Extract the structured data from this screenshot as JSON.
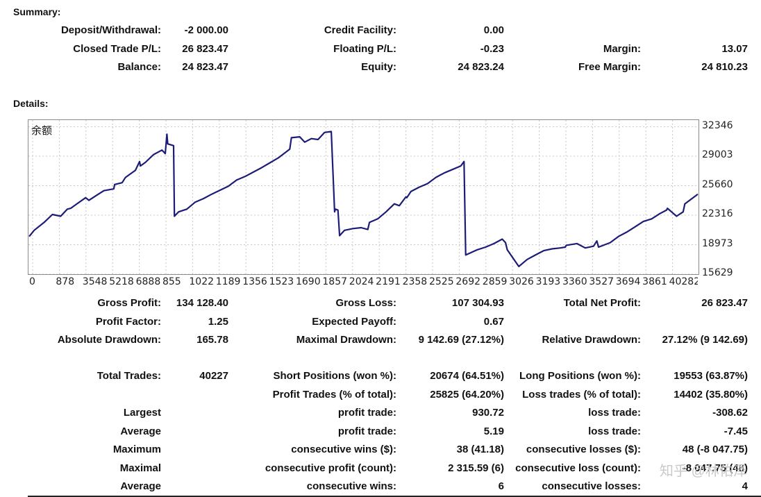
{
  "summary": {
    "heading": "Summary:",
    "deposit_label": "Deposit/Withdrawal:",
    "deposit_value": "-2 000.00",
    "credit_label": "Credit Facility:",
    "credit_value": "0.00",
    "closed_pl_label": "Closed Trade P/L:",
    "closed_pl_value": "26 823.47",
    "floating_label": "Floating P/L:",
    "floating_value": "-0.23",
    "margin_label": "Margin:",
    "margin_value": "13.07",
    "balance_label": "Balance:",
    "balance_value": "24 823.47",
    "equity_label": "Equity:",
    "equity_value": "24 823.24",
    "free_margin_label": "Free Margin:",
    "free_margin_value": "24 810.23"
  },
  "details": {
    "heading": "Details:"
  },
  "chart_data": {
    "type": "line",
    "title": "余额",
    "grid": true,
    "ylim": [
      15629,
      33100
    ],
    "y_ticks": [
      "32346",
      "29003",
      "25660",
      "22316",
      "18973",
      "15629"
    ],
    "x_ticks": [
      "0",
      "878",
      "3548",
      "5218",
      "6888",
      "855",
      "1022",
      "1189",
      "1356",
      "1523",
      "1690",
      "1857",
      "2024",
      "2191",
      "2358",
      "2525",
      "2692",
      "2859",
      "3026",
      "3193",
      "3360",
      "3527",
      "3694",
      "3861",
      "40282"
    ],
    "color": "#1c1c78",
    "x": [
      0,
      300,
      900,
      1400,
      1900,
      2300,
      2500,
      2800,
      3400,
      3600,
      4000,
      4500,
      5100,
      5150,
      5600,
      5800,
      6100,
      6400,
      6650,
      6700,
      6850,
      7000,
      7500,
      8000,
      8200,
      8300,
      8350,
      8700,
      8750,
      9000,
      9500,
      10000,
      10500,
      11000,
      12000,
      12500,
      13000,
      14000,
      15000,
      15700,
      15800,
      16300,
      16600,
      17000,
      17400,
      17800,
      18200,
      18400,
      18450,
      18600,
      18700,
      19000,
      19500,
      20000,
      20400,
      20500,
      21000,
      21500,
      22000,
      22300,
      22700,
      22750,
      23000,
      23500,
      24000,
      24500,
      25000,
      25500,
      26000,
      26200,
      26300,
      27000,
      27500,
      28000,
      28500,
      28700,
      28800,
      29500,
      30000,
      30500,
      31000,
      31500,
      32000,
      32300,
      32350,
      33000,
      33500,
      34000,
      34200,
      34300,
      35000,
      35500,
      36000,
      36500,
      37000,
      37500,
      38000,
      38400,
      38450,
      39000,
      39400,
      39500,
      40282
    ],
    "y": [
      19900,
      20600,
      21500,
      22400,
      22200,
      23000,
      23100,
      23500,
      24300,
      24000,
      24500,
      25100,
      25300,
      25800,
      26000,
      26600,
      27000,
      27400,
      28400,
      27900,
      28100,
      28300,
      29200,
      29700,
      29300,
      31500,
      30400,
      30200,
      22200,
      22700,
      23000,
      23800,
      24200,
      24700,
      25600,
      26300,
      26700,
      27700,
      28800,
      29800,
      31100,
      31200,
      30600,
      31000,
      30900,
      31700,
      31800,
      22700,
      23000,
      22900,
      20000,
      20600,
      20800,
      20900,
      20700,
      21500,
      21900,
      22700,
      23600,
      23400,
      24400,
      24300,
      25000,
      25500,
      25900,
      26600,
      27100,
      27500,
      27900,
      28400,
      17800,
      18400,
      18700,
      19100,
      19600,
      19200,
      18400,
      16500,
      17300,
      17800,
      18300,
      18500,
      18600,
      18700,
      18900,
      19100,
      18600,
      18800,
      19400,
      18700,
      19200,
      19900,
      20400,
      21000,
      21600,
      21900,
      22500,
      22900,
      23100,
      22200,
      22700,
      23600,
      24700
    ]
  },
  "stats": {
    "gross_profit_label": "Gross Profit:",
    "gross_profit_value": "134 128.40",
    "gross_loss_label": "Gross Loss:",
    "gross_loss_value": "107 304.93",
    "total_net_label": "Total Net Profit:",
    "total_net_value": "26 823.47",
    "profit_factor_label": "Profit Factor:",
    "profit_factor_value": "1.25",
    "expected_payoff_label": "Expected Payoff:",
    "expected_payoff_value": "0.67",
    "abs_dd_label": "Absolute Drawdown:",
    "abs_dd_value": "165.78",
    "max_dd_label": "Maximal Drawdown:",
    "max_dd_value": "9 142.69 (27.12%)",
    "rel_dd_label": "Relative Drawdown:",
    "rel_dd_value": "27.12% (9 142.69)",
    "total_trades_label": "Total Trades:",
    "total_trades_value": "40227",
    "short_label": "Short Positions (won %):",
    "short_value": "20674 (64.51%)",
    "long_label": "Long Positions (won %):",
    "long_value": "19553 (63.87%)",
    "profit_trades_label": "Profit Trades (% of total):",
    "profit_trades_value": "25825 (64.20%)",
    "loss_trades_label": "Loss trades (% of total):",
    "loss_trades_value": "14402 (35.80%)",
    "largest_label": "Largest",
    "largest_profit_label": "profit trade:",
    "largest_profit_value": "930.72",
    "largest_loss_label": "loss trade:",
    "largest_loss_value": "-308.62",
    "average_label": "Average",
    "avg_profit_label": "profit trade:",
    "avg_profit_value": "5.19",
    "avg_loss_label": "loss trade:",
    "avg_loss_value": "-7.45",
    "maximum_label": "Maximum",
    "max_wins_label": "consecutive wins ($):",
    "max_wins_value": "38 (41.18)",
    "max_losses_label": "consecutive losses ($):",
    "max_losses_value": "48 (-8 047.75)",
    "maximal_label": "Maximal",
    "maximal_profit_label": "consecutive profit (count):",
    "maximal_profit_value": "2 315.59 (6)",
    "maximal_loss_label": "consecutive loss (count):",
    "maximal_loss_value": "-8 047.75 (48)",
    "average2_label": "Average",
    "avg_wins_label": "consecutive wins:",
    "avg_wins_value": "6",
    "avg_losses_label": "consecutive losses:",
    "avg_losses_value": "4"
  },
  "watermark": "知乎 @林佑泽"
}
